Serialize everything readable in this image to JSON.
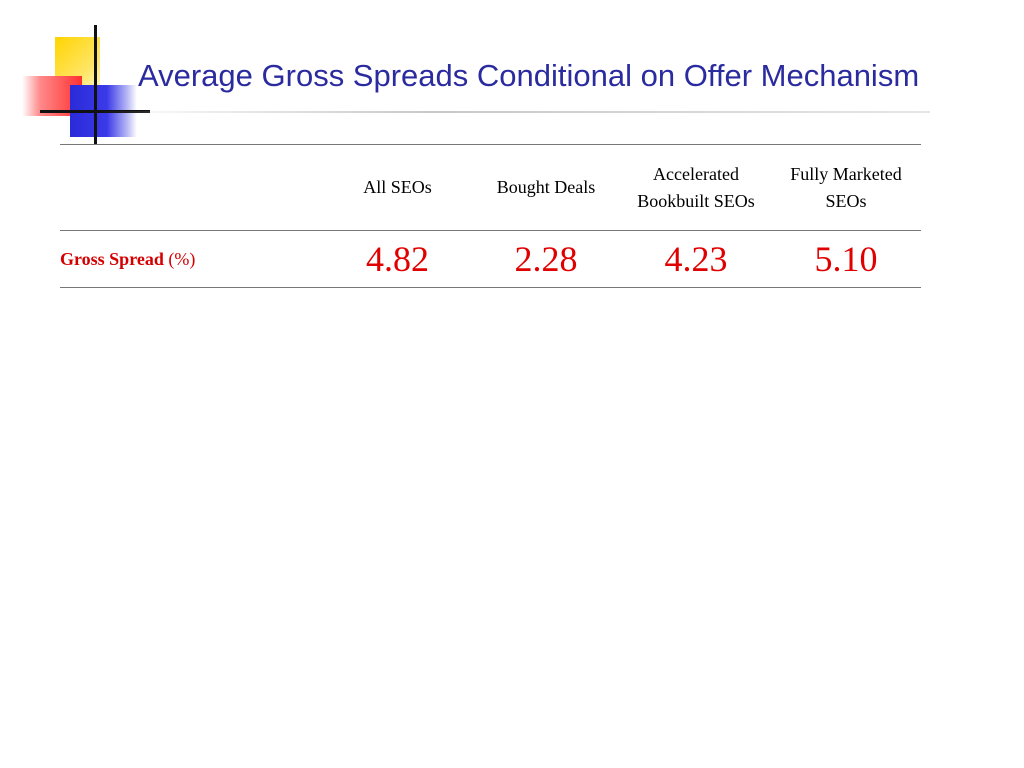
{
  "slide": {
    "title": "Average Gross Spreads Conditional on Offer Mechanism"
  },
  "table": {
    "columns": [
      {
        "line1": "All SEOs",
        "line2": ""
      },
      {
        "line1": "Bought Deals",
        "line2": ""
      },
      {
        "line1": "Accelerated",
        "line2": "Bookbuilt SEOs"
      },
      {
        "line1": "Fully Marketed",
        "line2": "SEOs"
      }
    ],
    "rows": [
      {
        "label": "Gross Spread",
        "unit": "(%)",
        "values": [
          "4.82",
          "2.28",
          "4.23",
          "5.10"
        ]
      }
    ]
  },
  "colors": {
    "title": "#2b2ba0",
    "row_label": "#d40000",
    "values": "#e00000"
  }
}
